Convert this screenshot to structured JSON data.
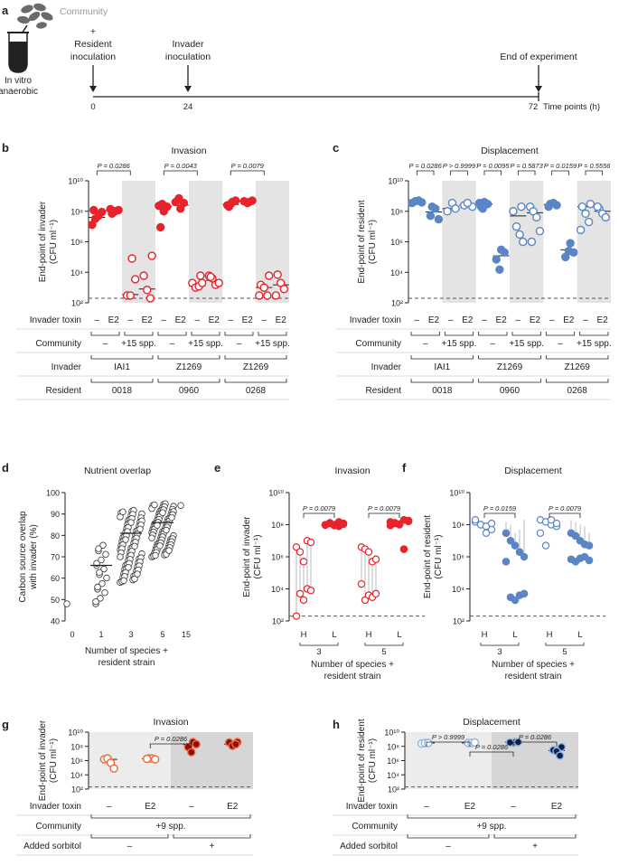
{
  "colors": {
    "red": "#e8232b",
    "blue": "#5b85c4",
    "light_blue": "#8fb6e0",
    "orange": "#ee6a3c",
    "dark_red": "#8c0d0d",
    "navy": "#0c1f52",
    "grey_band": "#e4e4e4",
    "light_band": "#ececec",
    "dark_band": "#d6d6d6",
    "text": "#222222"
  },
  "panel_a": {
    "letter": "a",
    "community": "Community",
    "plus": "+",
    "resident": "Resident",
    "resident2": "inoculation",
    "invader": "Invader",
    "invader2": "inoculation",
    "end": "End of experiment",
    "tube1": "In vitro",
    "tube2": "anaerobic",
    "ticks": [
      "0",
      "24",
      "72"
    ],
    "axis_label": "Time points (h)"
  },
  "chart_data": [
    {
      "id": "b",
      "type": "scatter",
      "title": "Invasion",
      "ylabel": "End-point of invader",
      "ylabel_unit": "(CFU ml⁻¹)",
      "ylim_log10": [
        2,
        10
      ],
      "y_ticks": [
        "10²",
        "10⁴",
        "10⁶",
        "10⁸",
        "10¹⁰"
      ],
      "dashed_line_log10": 2.3,
      "groups": [
        {
          "toxin": "–",
          "filled": true,
          "values": [
            13000000.0,
            32000000.0,
            50000000.0,
            90000000.0,
            120000000.0
          ],
          "median": 40000000.0
        },
        {
          "toxin": "E2",
          "filled": true,
          "values": [
            70000000.0,
            100000000.0,
            120000000.0,
            140000000.0
          ],
          "median": 110000000.0
        },
        {
          "toxin": "–",
          "filled": false,
          "values": [
            80000.0,
            3500.0,
            300.0,
            300.0
          ],
          "median": 350.0
        },
        {
          "toxin": "E2",
          "filled": false,
          "values": [
            120000.0,
            6000.0,
            700.0,
            200.0
          ],
          "median": 800.0
        },
        {
          "toxin": "–",
          "filled": true,
          "values": [
            9000000.0,
            100000000.0,
            200000000.0,
            230000000.0,
            300000000.0
          ],
          "median": 200000000.0
        },
        {
          "toxin": "E2",
          "filled": true,
          "values": [
            150000000.0,
            350000000.0,
            400000000.0,
            700000000.0
          ],
          "median": 250000000.0
        },
        {
          "toxin": "–",
          "filled": false,
          "values": [
            6000.0,
            2000.0,
            1000.0,
            1200.0,
            2000.0
          ],
          "median": 1300.0
        },
        {
          "toxin": "E2",
          "filled": false,
          "values": [
            6000.0,
            4000.0,
            1500.0,
            2000.0,
            5000.0
          ],
          "median": 3000.0
        },
        {
          "toxin": "–",
          "filled": true,
          "values": [
            200000000.0,
            400000000.0,
            500000000.0,
            250000000.0,
            300000000.0
          ],
          "median": 280000000.0
        },
        {
          "toxin": "E2",
          "filled": true,
          "values": [
            400000000.0,
            500000000.0,
            450000000.0,
            350000000.0
          ],
          "median": 450000000.0
        },
        {
          "toxin": "–",
          "filled": false,
          "values": [
            6000.0,
            1500.0,
            1000.0,
            300.0,
            300.0
          ],
          "median": 1000.0
        },
        {
          "toxin": "E2",
          "filled": false,
          "values": [
            7000.0,
            2000.0,
            800.0,
            300.0
          ],
          "median": 1500.0
        }
      ],
      "p_values": [
        "P = 0.0286",
        "P = 0.0043",
        "P = 0.0079"
      ],
      "rows": [
        {
          "label": "Invader toxin",
          "cells": [
            "–",
            "E2",
            "–",
            "E2",
            "–",
            "E2",
            "–",
            "E2",
            "–",
            "E2",
            "–",
            "E2"
          ]
        },
        {
          "label": "Community",
          "cells": [
            "–",
            "+15 spp.",
            "–",
            "+15 spp.",
            "–",
            "+15 spp."
          ]
        },
        {
          "label": "Invader",
          "cells": [
            "IAI1",
            "Z1269",
            "Z1269"
          ]
        },
        {
          "label": "Resident",
          "cells": [
            "0018",
            "0960",
            "0268"
          ]
        }
      ]
    },
    {
      "id": "c",
      "type": "scatter",
      "title": "Displacement",
      "ylabel": "End-point of resident",
      "ylabel_unit": "(CFU ml⁻¹)",
      "ylim_log10": [
        2,
        10
      ],
      "y_ticks": [
        "10²",
        "10⁴",
        "10⁶",
        "10⁸",
        "10¹⁰"
      ],
      "dashed_line_log10": 2.3,
      "groups": [
        {
          "toxin": "–",
          "filled": true,
          "values": [
            350000000.0,
            450000000.0,
            500000000.0,
            380000000.0
          ],
          "median": 430000000.0
        },
        {
          "toxin": "E2",
          "filled": true,
          "values": [
            200000000.0,
            150000000.0,
            30000000.0,
            50000000.0
          ],
          "median": 90000000.0
        },
        {
          "toxin": "–",
          "filled": false,
          "values": [
            350000000.0,
            150000000.0,
            100000000.0
          ],
          "median": 150000000.0
        },
        {
          "toxin": "E2",
          "filled": false,
          "values": [
            200000000.0,
            250000000.0,
            350000000.0
          ],
          "median": 250000000.0
        },
        {
          "toxin": "–",
          "filled": true,
          "values": [
            200000000.0,
            400000000.0,
            300000000.0,
            350000000.0,
            150000000.0
          ],
          "median": 300000000.0
        },
        {
          "toxin": "E2",
          "filled": true,
          "values": [
            300000.0,
            200000.0,
            70000.0,
            15000.0
          ],
          "median": 120000.0
        },
        {
          "toxin": "–",
          "filled": false,
          "values": [
            200000000.0,
            100000000.0,
            10000000.0,
            3000000.0,
            1000000.0
          ],
          "median": 50000000.0
        },
        {
          "toxin": "E2",
          "filled": false,
          "values": [
            200000000.0,
            100000000.0,
            40000000.0,
            5000000.0,
            1000000.0
          ],
          "median": 80000000.0
        },
        {
          "toxin": "–",
          "filled": true,
          "values": [
            300000000.0,
            350000000.0,
            250000000.0,
            200000000.0
          ],
          "median": 280000000.0
        },
        {
          "toxin": "E2",
          "filled": true,
          "values": [
            800000.0,
            200000.0,
            100000.0,
            250000.0
          ],
          "median": 300000.0
        },
        {
          "toxin": "–",
          "filled": false,
          "values": [
            300000000.0,
            200000000.0,
            70000000.0,
            20000000.0,
            6000000.0
          ],
          "median": 200000000.0
        },
        {
          "toxin": "E2",
          "filled": false,
          "values": [
            150000000.0,
            70000000.0,
            40000000.0,
            200000000.0
          ],
          "median": 100000000.0
        }
      ],
      "p_values": [
        "P = 0.0286",
        "P > 0.9999",
        "P = 0.0095",
        "P = 0.5873",
        "P = 0.0159",
        "P = 0.5556"
      ],
      "rows": [
        {
          "label": "Invader toxin",
          "cells": [
            "–",
            "E2",
            "–",
            "E2",
            "–",
            "E2",
            "–",
            "E2",
            "–",
            "E2",
            "–",
            "E2"
          ]
        },
        {
          "label": "Community",
          "cells": [
            "–",
            "+15 spp.",
            "–",
            "+15 spp.",
            "–",
            "+15 spp."
          ]
        },
        {
          "label": "Invader",
          "cells": [
            "IAI1",
            "Z1269",
            "Z1269"
          ]
        },
        {
          "label": "Resident",
          "cells": [
            "0018",
            "0960",
            "0268"
          ]
        }
      ]
    },
    {
      "id": "d",
      "type": "scatter",
      "title": "Nutrient overlap",
      "ylabel": "Carbon source overlap",
      "ylabel2": "with invader (%)",
      "xlabel": "Number of species +",
      "xlabel2": "resident strain",
      "ylim": [
        40,
        100
      ],
      "y_ticks": [
        "40",
        "50",
        "60",
        "70",
        "80",
        "90",
        "100"
      ],
      "categories": [
        "0",
        "1",
        "3",
        "5",
        "15"
      ],
      "groups": [
        {
          "x": "0",
          "range": [
            48,
            48
          ],
          "n": 1,
          "median": null
        },
        {
          "x": "1",
          "range": [
            48,
            77
          ],
          "n": 18,
          "median": 66
        },
        {
          "x": "3",
          "range": [
            58,
            92
          ],
          "n": 80,
          "median": 81
        },
        {
          "x": "5",
          "range": [
            70,
            95
          ],
          "n": 80,
          "median": 86
        },
        {
          "x": "15",
          "range": [
            94,
            94
          ],
          "n": 1,
          "median": null
        }
      ]
    },
    {
      "id": "e",
      "type": "scatter",
      "title": "Invasion",
      "ylabel": "End-point of invader",
      "ylabel_unit": "(CFU ml⁻¹)",
      "ylim_log10": [
        2,
        10
      ],
      "y_ticks": [
        "10²",
        "10⁴",
        "10⁶",
        "10⁸",
        "10¹⁰"
      ],
      "dashed_line_log10": 2.3,
      "xlabel": "Number of species +",
      "xlabel2": "resident strain",
      "x_groups": [
        "H",
        "L",
        "H",
        "L"
      ],
      "x_counts": [
        "3",
        "5"
      ],
      "p_values": [
        "P = 0.0079",
        "P = 0.0079"
      ],
      "pairs": [
        {
          "group": "3",
          "h": [
            4000000.0,
            2000000.0,
            500000.0,
            10000000.0,
            8000000.0
          ],
          "low": [
            200.0,
            5000.0,
            2000.0,
            10000.0,
            8000.0
          ],
          "l": [
            100000000.0,
            120000000.0,
            90000000.0,
            150000000.0,
            110000000.0,
            95000000.0,
            130000000.0,
            100000000.0,
            80000000.0,
            120000000.0
          ]
        },
        {
          "group": "5",
          "h": [
            4000000.0,
            3000000.0,
            2000000.0,
            500000.0,
            700000.0
          ],
          "low": [
            20000.0,
            2000.0,
            4000.0,
            3000.0,
            5000.0
          ],
          "l": [
            150000000.0,
            120000000.0,
            100000000.0,
            200000000.0,
            180000000.0,
            90000000.0,
            130000000.0,
            110000000.0,
            3000000.0,
            160000000.0
          ]
        }
      ]
    },
    {
      "id": "f",
      "type": "scatter",
      "title": "Displacement",
      "ylabel": "End-point of resident",
      "ylabel_unit": "(CFU ml⁻¹)",
      "ylim_log10": [
        2,
        10
      ],
      "y_ticks": [
        "10²",
        "10⁴",
        "10⁶",
        "10⁸",
        "10¹⁰"
      ],
      "dashed_line_log10": 2.3,
      "xlabel": "Number of species +",
      "xlabel2": "resident strain",
      "x_groups": [
        "H",
        "L",
        "H",
        "L"
      ],
      "x_counts": [
        "3",
        "5"
      ],
      "p_values": [
        "P = 0.0159",
        "P = 0.0079"
      ],
      "pairs": [
        {
          "group": "3",
          "h": [
            150000000.0,
            100000000.0,
            30000000.0,
            50000000.0,
            200000000.0,
            100000000.0,
            80000000.0,
            120000000.0
          ],
          "l": [
            30000000.0,
            10000000.0,
            5000000.0,
            2000000.0,
            1000000.0,
            500000.0,
            3000.0,
            2000.0,
            4000.0,
            5000.0
          ]
        },
        {
          "group": "5",
          "h": [
            200000000.0,
            150000000.0,
            100000000.0,
            80000000.0,
            30000000.0,
            5000000.0,
            200000000.0,
            120000000.0
          ],
          "l": [
            30000000.0,
            20000000.0,
            10000000.0,
            6000000.0,
            5000000.0,
            700000.0,
            500000.0,
            800000.0,
            1000000.0,
            600000.0
          ]
        }
      ]
    },
    {
      "id": "g",
      "type": "scatter",
      "title": "Invasion",
      "ylabel": "End-point of invader",
      "ylabel_unit": "(CFU ml⁻¹)",
      "ylim_log10": [
        2,
        10
      ],
      "y_ticks": [
        "10²",
        "10⁴",
        "10⁶",
        "10⁸",
        "10¹⁰"
      ],
      "dashed_line_log10": 2.3,
      "groups": [
        {
          "toxin": "–",
          "values": [
            1500000.0,
            2000000.0,
            500000.0,
            80000.0
          ],
          "median": 1500000.0
        },
        {
          "toxin": "E2",
          "values": [
            2000000.0,
            2000000.0,
            1500000.0,
            1800000.0
          ],
          "median": 1800000.0
        },
        {
          "toxin": "–",
          "values": [
            400000000.0,
            200000000.0,
            80000000.0,
            15000000.0
          ],
          "median": 180000000.0
        },
        {
          "toxin": "E2",
          "values": [
            400000000.0,
            350000000.0,
            120000000.0,
            200000000.0
          ],
          "median": 200000000.0
        }
      ],
      "p_values": [
        "P = 0.0286"
      ],
      "rows": [
        {
          "label": "Invader toxin",
          "cells": [
            "–",
            "E2",
            "–",
            "E2"
          ]
        },
        {
          "label": "Community",
          "cells": [
            "+9 spp."
          ]
        },
        {
          "label": "Added sorbitol",
          "cells": [
            "–",
            "+"
          ]
        }
      ]
    },
    {
      "id": "h",
      "type": "scatter",
      "title": "Displacement",
      "ylabel": "End-point of resident",
      "ylabel_unit": "(CFU ml⁻¹)",
      "ylim_log10": [
        2,
        10
      ],
      "y_ticks": [
        "10²",
        "10⁴",
        "10⁶",
        "10⁸",
        "10¹⁰"
      ],
      "dashed_line_log10": 2.3,
      "groups": [
        {
          "toxin": "–",
          "values": [
            250000000.0,
            300000000.0,
            300000000.0
          ],
          "median": 300000000.0
        },
        {
          "toxin": "E2",
          "values": [
            300000000.0,
            300000000.0,
            350000000.0
          ],
          "median": 300000000.0
        },
        {
          "toxin": "–",
          "values": [
            400000000.0,
            400000000.0,
            350000000.0
          ],
          "median": 400000000.0
        },
        {
          "toxin": "E2",
          "values": [
            80000000.0,
            30000000.0,
            20000000.0,
            5000000.0
          ],
          "median": 25000000.0
        }
      ],
      "p_values": [
        "P > 0.9999",
        "P = 0.0286",
        "P = 0.0286"
      ],
      "rows": [
        {
          "label": "Invader toxin",
          "cells": [
            "–",
            "E2",
            "–",
            "E2"
          ]
        },
        {
          "label": "Community",
          "cells": [
            "+9 spp."
          ]
        },
        {
          "label": "Added sorbitol",
          "cells": [
            "–",
            "+"
          ]
        }
      ]
    }
  ]
}
